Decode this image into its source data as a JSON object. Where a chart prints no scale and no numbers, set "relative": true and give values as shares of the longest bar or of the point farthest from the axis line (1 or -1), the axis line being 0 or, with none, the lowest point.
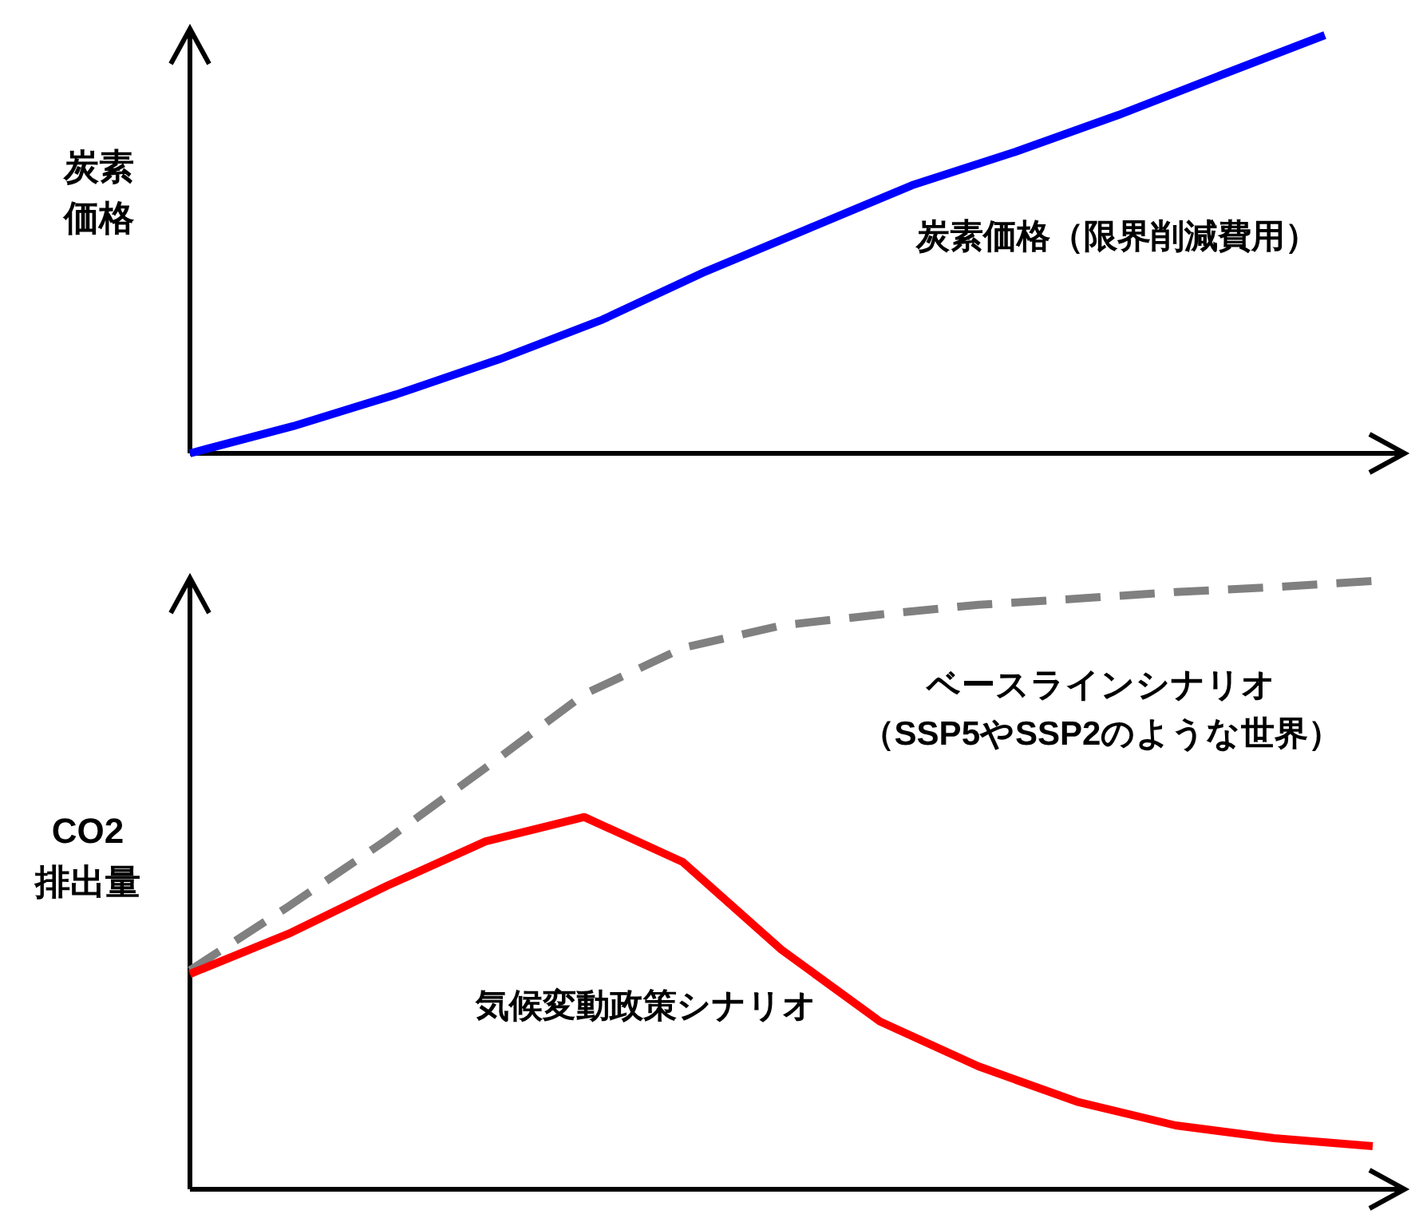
{
  "chart_data": [
    {
      "type": "line",
      "relative": true,
      "ylabel": "炭素価格",
      "categories": [
        null,
        null,
        null,
        null,
        null,
        null,
        null,
        null,
        null,
        null,
        null,
        null
      ],
      "series": [
        {
          "name": "炭素価格（限界削減費用）",
          "color": "#0000ff",
          "line_style": "solid",
          "values": [
            0,
            0.065,
            0.141,
            0.225,
            0.32,
            0.435,
            0.538,
            0.641,
            0.721,
            0.809,
            0.905,
            1
          ]
        }
      ]
    },
    {
      "type": "line",
      "relative": true,
      "ylabel": "CO2排出量",
      "categories": [
        null,
        null,
        null,
        null,
        null,
        null,
        null,
        null,
        null,
        null,
        null,
        null,
        null
      ],
      "series": [
        {
          "name": "ベースラインシナリオ（SSP5やSSP2のような世界）",
          "color": "#808080",
          "line_style": "dashed",
          "values": [
            0.36,
            0.465,
            0.575,
            0.693,
            0.814,
            0.89,
            0.927,
            0.945,
            0.961,
            0.971,
            0.982,
            0.99,
            1
          ]
        },
        {
          "name": "気候変動政策シナリオ",
          "color": "#ff0000",
          "line_style": "solid",
          "values": [
            0.354,
            0.42,
            0.499,
            0.572,
            0.612,
            0.538,
            0.394,
            0.276,
            0.202,
            0.144,
            0.105,
            0.084,
            0.071
          ]
        }
      ]
    }
  ]
}
